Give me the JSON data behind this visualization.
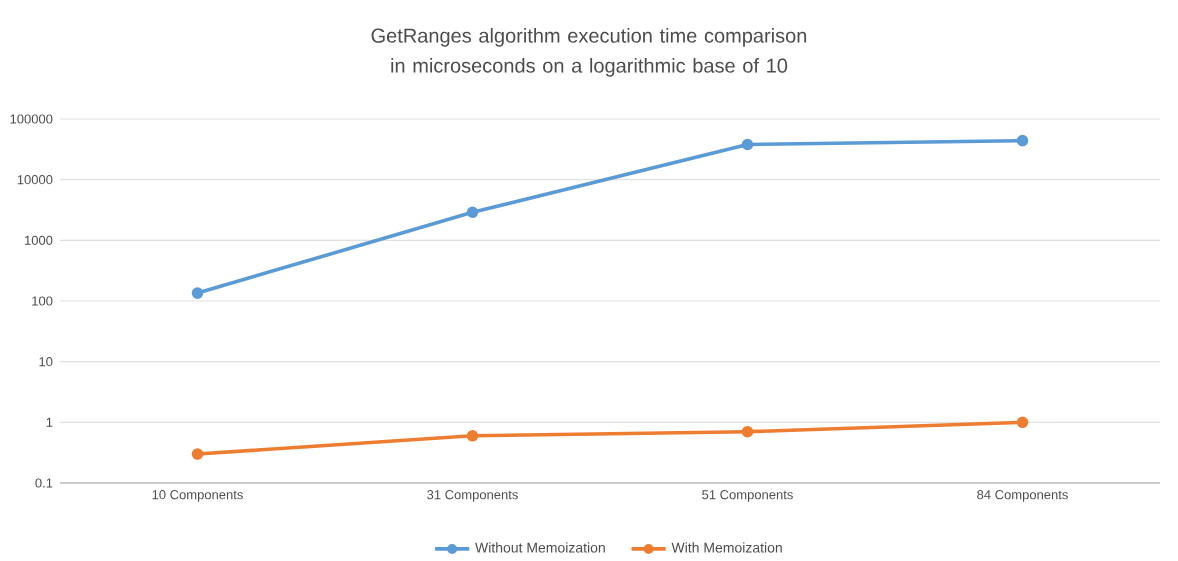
{
  "chart_data": {
    "type": "line",
    "title": "GetRanges algorithm execution time comparison in microseconds on a logarithmic base of 10",
    "categories": [
      "10 Components",
      "31 Components",
      "51 Components",
      "84 Components"
    ],
    "series": [
      {
        "name": "Without Memoization",
        "color": "#5b9bd5",
        "values": [
          135,
          2900,
          38000,
          44000
        ]
      },
      {
        "name": "With Memoization",
        "color": "#ed7d31",
        "values": [
          0.3,
          0.6,
          0.7,
          1.0
        ]
      }
    ],
    "log": "y",
    "ylim": [
      0.1,
      100000
    ],
    "yticks": [
      0.1,
      1,
      10,
      100,
      1000,
      10000,
      100000
    ],
    "grid": "y",
    "legend": "bottom",
    "marker": "circle",
    "line_style": "solid"
  }
}
